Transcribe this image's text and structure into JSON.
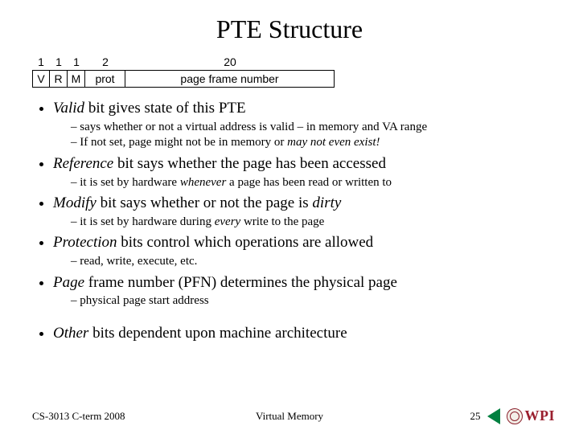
{
  "title": "PTE Structure",
  "pte": {
    "widths": [
      "1",
      "1",
      "1",
      "2",
      "20"
    ],
    "labels": [
      "V",
      "R",
      "M",
      "prot",
      "page frame number"
    ]
  },
  "bullets": {
    "b1": {
      "lead": "Valid",
      "rest": " bit gives state of this PTE",
      "s1": "says whether or not a virtual address is valid – in memory and VA range",
      "s2a": "If not set, page might not be in memory or ",
      "s2b": "may not even exist!"
    },
    "b2": {
      "lead": "Reference",
      "rest": " bit says whether the page has been accessed",
      "s1a": "it is set by hardware ",
      "s1b": "whenever",
      "s1c": " a page has been read or written to"
    },
    "b3": {
      "lead": "Modify",
      "rest1": " bit says whether or not the page is ",
      "rest2": "dirty",
      "s1a": "it is set by hardware during ",
      "s1b": "every",
      "s1c": " write to the page"
    },
    "b4": {
      "lead": "Protection",
      "rest": " bits control which operations are allowed",
      "s1": "read, write, execute, etc."
    },
    "b5": {
      "lead": "Page",
      "rest": " frame number (PFN) determines the physical page",
      "s1": "physical page start address"
    },
    "b6": {
      "lead": "Other",
      "rest": " bits dependent upon machine architecture"
    }
  },
  "footer": {
    "left": "CS-3013 C-term 2008",
    "center": "Virtual Memory",
    "page": "25",
    "logo_text": "WPI",
    "logo_color": "#9a1f2e"
  }
}
